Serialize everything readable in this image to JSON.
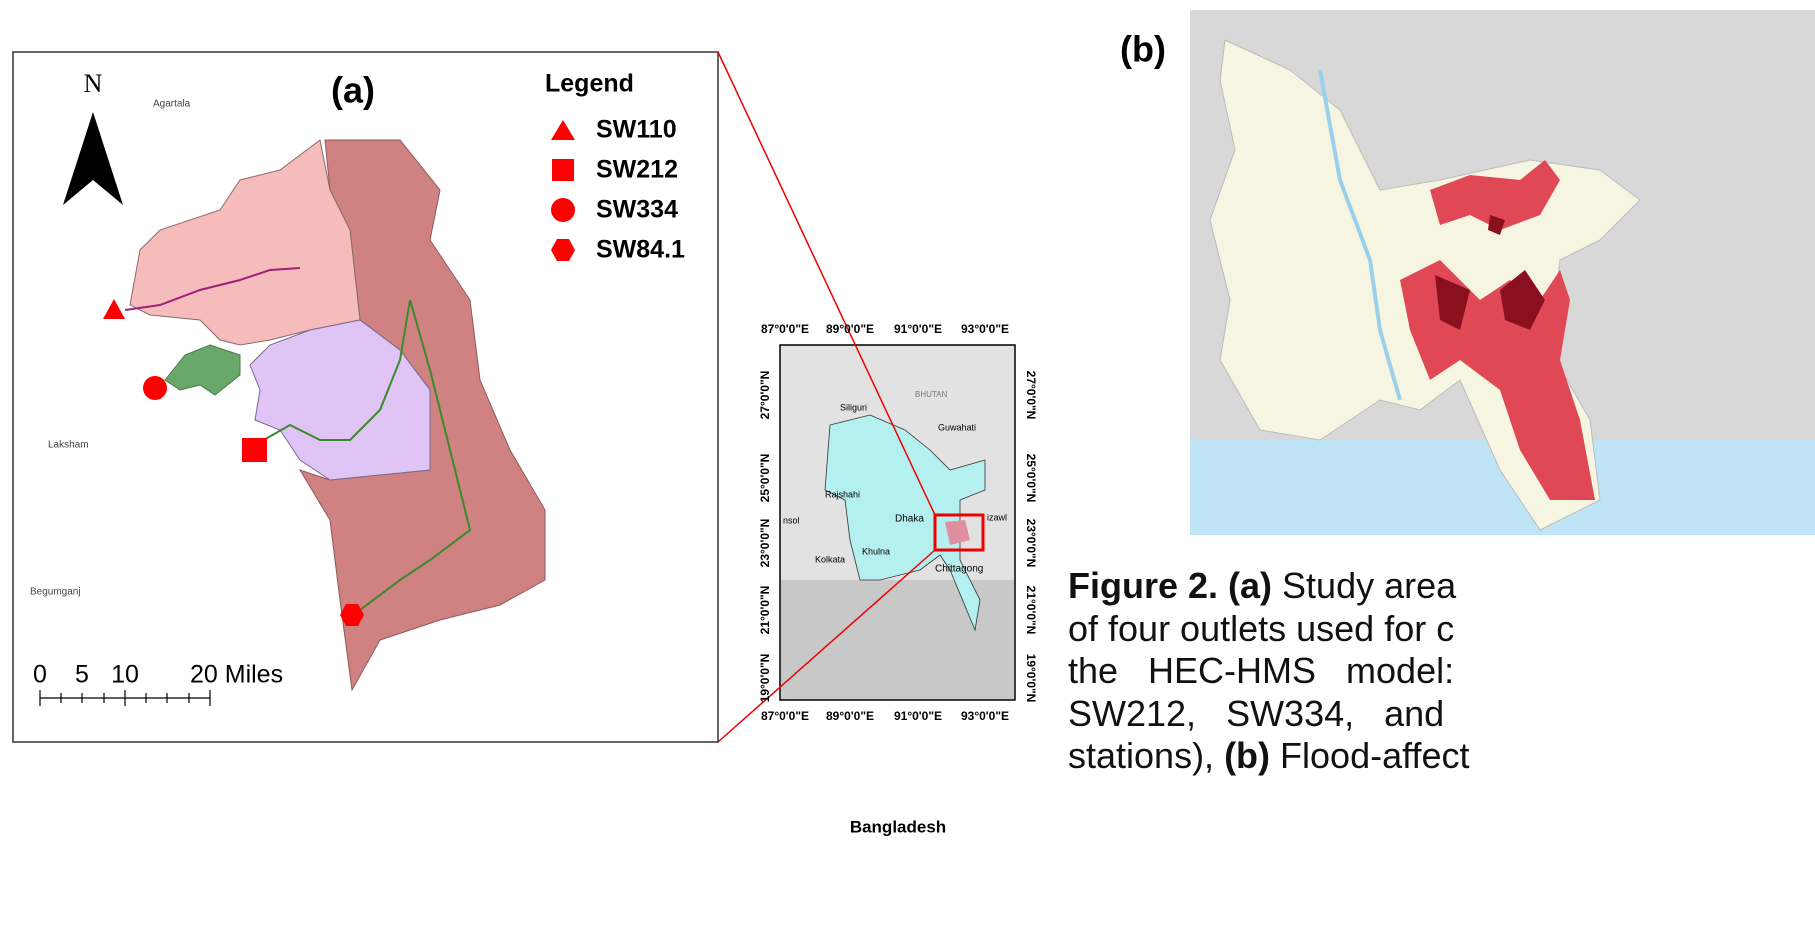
{
  "panel_a": {
    "label": "(a)",
    "north": "N",
    "legend_title": "Legend",
    "legend": [
      "SW110",
      "SW212",
      "SW334",
      "SW84.1"
    ],
    "places": [
      "Agartala",
      "Laksham",
      "Begumganj"
    ],
    "scale_ticks": [
      "0",
      "5",
      "10"
    ],
    "scale_end": "20 Miles"
  },
  "inset": {
    "lon_labels": [
      "87°0'0\"E",
      "89°0'0\"E",
      "91°0'0\"E",
      "93°0'0\"E"
    ],
    "lat_labels": [
      "27°0'0\"N",
      "25°0'0\"N",
      "23°0'0\"N",
      "21°0'0\"N",
      "19°0'0\"N"
    ],
    "places": [
      "BHUTAN",
      "Siliguri",
      "Guwahati",
      "Rajshahi",
      "Dhaka",
      "Khulna",
      "Kolkata",
      "Chittagong",
      "izawl",
      "nsol"
    ],
    "caption": "Bangladesh"
  },
  "panel_b": {
    "label": "(b)"
  },
  "caption": {
    "lines": [
      [
        {
          "text": "Figure 2. (a)",
          "bold": true
        },
        {
          "text": " Study area",
          "bold": false
        }
      ],
      [
        {
          "text": "of four outlets used for c",
          "bold": false
        }
      ],
      [
        {
          "text": "the   HEC-HMS   model:",
          "bold": false
        }
      ],
      [
        {
          "text": "SW212,   SW334,   and",
          "bold": false
        }
      ],
      [
        {
          "text": "stations), ",
          "bold": false
        },
        {
          "text": "(b)",
          "bold": true
        },
        {
          "text": " Flood-affect",
          "bold": false
        }
      ]
    ]
  }
}
